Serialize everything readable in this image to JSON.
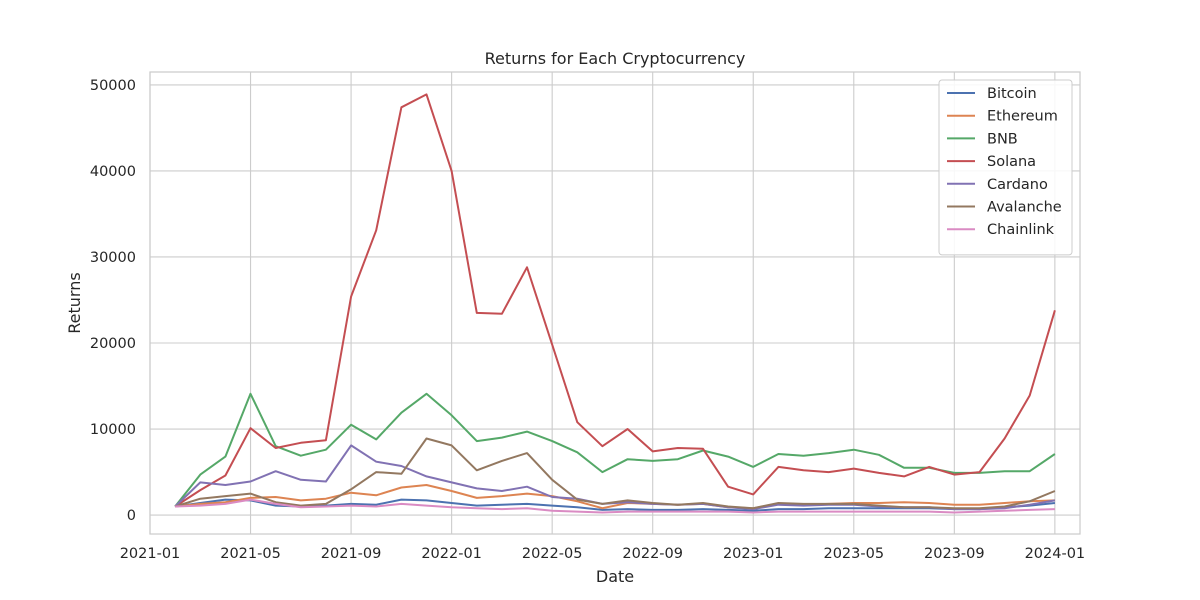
{
  "chart_data": {
    "type": "line",
    "title": "Returns for Each Cryptocurrency",
    "xlabel": "Date",
    "ylabel": "Returns",
    "xlim": [
      "2021-01-01",
      "2024-02-01"
    ],
    "ylim": [
      -2200,
      51500
    ],
    "x_ticks": [
      "2021-01",
      "2021-05",
      "2021-09",
      "2022-01",
      "2022-05",
      "2022-09",
      "2023-01",
      "2023-05",
      "2023-09",
      "2024-01"
    ],
    "y_ticks": [
      0,
      10000,
      20000,
      30000,
      40000,
      50000
    ],
    "grid": true,
    "legend_position": "top-right",
    "x": [
      "2021-02",
      "2021-03",
      "2021-04",
      "2021-05",
      "2021-06",
      "2021-07",
      "2021-08",
      "2021-09",
      "2021-10",
      "2021-11",
      "2021-12",
      "2022-01",
      "2022-02",
      "2022-03",
      "2022-04",
      "2022-05",
      "2022-06",
      "2022-07",
      "2022-08",
      "2022-09",
      "2022-10",
      "2022-11",
      "2022-12",
      "2023-01",
      "2023-02",
      "2023-03",
      "2023-04",
      "2023-05",
      "2023-06",
      "2023-07",
      "2023-08",
      "2023-09",
      "2023-10",
      "2023-11",
      "2023-12",
      "2024-01"
    ],
    "series": [
      {
        "name": "Bitcoin",
        "color": "#4c72b0",
        "values": [
          1000,
          1400,
          1800,
          1700,
          1100,
          1000,
          1100,
          1300,
          1200,
          1800,
          1700,
          1400,
          1100,
          1200,
          1300,
          1100,
          900,
          600,
          700,
          600,
          600,
          700,
          600,
          500,
          700,
          700,
          800,
          800,
          800,
          800,
          800,
          700,
          700,
          900,
          1100,
          1400
        ]
      },
      {
        "name": "Ethereum",
        "color": "#dd8452",
        "values": [
          1000,
          1300,
          1500,
          2000,
          2100,
          1700,
          1900,
          2600,
          2300,
          3200,
          3500,
          2800,
          2000,
          2200,
          2500,
          2200,
          1600,
          800,
          1400,
          1300,
          1200,
          1300,
          900,
          800,
          1300,
          1200,
          1300,
          1400,
          1400,
          1500,
          1400,
          1200,
          1200,
          1400,
          1600,
          1700
        ]
      },
      {
        "name": "BNB",
        "color": "#55a868",
        "values": [
          1000,
          4700,
          6800,
          14100,
          8000,
          6900,
          7600,
          10500,
          8800,
          11900,
          14100,
          11600,
          8600,
          9000,
          9700,
          8600,
          7300,
          5000,
          6500,
          6300,
          6500,
          7500,
          6800,
          5600,
          7100,
          6900,
          7200,
          7600,
          7000,
          5500,
          5500,
          4900,
          4900,
          5100,
          5100,
          7100
        ]
      },
      {
        "name": "Solana",
        "color": "#c44e52",
        "values": [
          1000,
          2900,
          4600,
          10100,
          7800,
          8400,
          8700,
          25400,
          33100,
          47400,
          48900,
          40000,
          23500,
          23400,
          28800,
          19800,
          10800,
          8000,
          10000,
          7400,
          7800,
          7700,
          3300,
          2400,
          5600,
          5200,
          5000,
          5400,
          4900,
          4500,
          5600,
          4700,
          5000,
          8900,
          13900,
          23800
        ]
      },
      {
        "name": "Cardano",
        "color": "#8172b3",
        "values": [
          1000,
          3800,
          3500,
          3900,
          5100,
          4100,
          3900,
          8100,
          6200,
          5700,
          4500,
          3800,
          3100,
          2800,
          3300,
          2100,
          1900,
          1300,
          1500,
          1300,
          1200,
          1300,
          900,
          700,
          1200,
          1100,
          1200,
          1200,
          1000,
          900,
          900,
          700,
          700,
          800,
          1200,
          1700
        ]
      },
      {
        "name": "Avalanche",
        "color": "#937860",
        "values": [
          1000,
          1900,
          2200,
          2500,
          1500,
          1100,
          1300,
          3000,
          5000,
          4800,
          8900,
          8100,
          5200,
          6300,
          7200,
          4100,
          1800,
          1300,
          1700,
          1400,
          1200,
          1400,
          1000,
          800,
          1400,
          1300,
          1300,
          1300,
          1100,
          900,
          900,
          800,
          800,
          1000,
          1600,
          2800
        ]
      },
      {
        "name": "Chainlink",
        "color": "#da8bc3",
        "values": [
          1000,
          1100,
          1300,
          1800,
          1300,
          900,
          1000,
          1100,
          1000,
          1300,
          1100,
          900,
          800,
          700,
          800,
          500,
          400,
          300,
          400,
          400,
          400,
          400,
          400,
          300,
          400,
          400,
          400,
          400,
          400,
          400,
          400,
          300,
          400,
          500,
          600,
          700
        ]
      }
    ]
  }
}
